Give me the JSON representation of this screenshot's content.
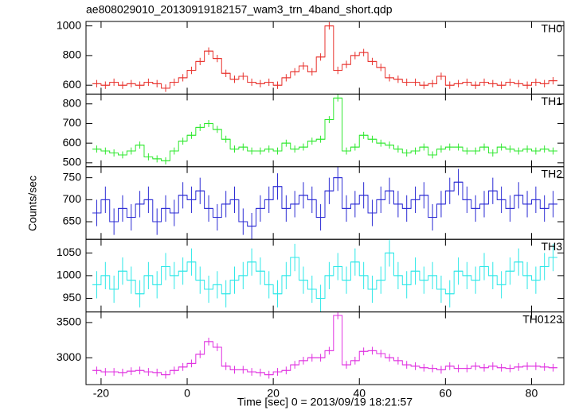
{
  "chart_data": {
    "type": "step",
    "title": "ae808029010_20130919182157_wam3_trn_4band_short.qdp",
    "x_label": "Time [sec] 0 = 2013/09/19 18:21:57",
    "y_label": "Counts/sec",
    "xlim": [
      -23.5,
      87.5
    ],
    "xticks": [
      -20,
      0,
      20,
      40,
      60,
      80
    ],
    "x": [
      -21,
      -19,
      -17,
      -15,
      -13,
      -11,
      -9,
      -7,
      -5,
      -3,
      -1,
      1,
      3,
      5,
      7,
      9,
      11,
      13,
      15,
      17,
      19,
      21,
      23,
      25,
      27,
      29,
      31,
      33,
      35,
      37,
      39,
      41,
      43,
      45,
      47,
      49,
      51,
      53,
      55,
      57,
      59,
      61,
      63,
      65,
      67,
      69,
      71,
      73,
      75,
      77,
      79,
      81,
      83,
      85
    ],
    "panels": [
      {
        "name": "TH0",
        "color": "#e8322d",
        "error": 25,
        "ylim": [
          540,
          1030
        ],
        "yticks": [
          600,
          800,
          1000
        ],
        "values": [
          610,
          600,
          620,
          600,
          610,
          600,
          620,
          610,
          580,
          620,
          650,
          700,
          760,
          830,
          780,
          680,
          640,
          660,
          620,
          610,
          620,
          600,
          650,
          690,
          730,
          690,
          790,
          1000,
          700,
          740,
          800,
          820,
          760,
          720,
          650,
          640,
          620,
          620,
          600,
          610,
          660,
          600,
          610,
          620,
          600,
          620,
          610,
          600,
          620,
          610,
          600,
          620,
          610,
          630
        ]
      },
      {
        "name": "TH1",
        "color": "#2ee82e",
        "error": 18,
        "ylim": [
          480,
          850
        ],
        "yticks": [
          500,
          600,
          700,
          800
        ],
        "values": [
          570,
          560,
          550,
          540,
          560,
          590,
          530,
          520,
          510,
          560,
          610,
          640,
          680,
          700,
          670,
          620,
          570,
          580,
          560,
          560,
          570,
          560,
          600,
          570,
          580,
          610,
          620,
          720,
          830,
          560,
          580,
          640,
          620,
          600,
          590,
          570,
          550,
          560,
          580,
          540,
          570,
          580,
          580,
          560,
          560,
          580,
          550,
          580,
          570,
          560,
          570,
          560,
          570,
          560
        ]
      },
      {
        "name": "TH2",
        "color": "#2b2bd4",
        "error": 30,
        "ylim": [
          610,
          775
        ],
        "yticks": [
          650,
          700,
          750
        ],
        "values": [
          670,
          700,
          650,
          680,
          660,
          690,
          700,
          650,
          680,
          670,
          710,
          700,
          720,
          680,
          660,
          690,
          700,
          650,
          640,
          680,
          700,
          730,
          680,
          690,
          710,
          700,
          660,
          720,
          750,
          680,
          690,
          710,
          670,
          700,
          720,
          690,
          680,
          700,
          710,
          660,
          690,
          720,
          740,
          700,
          680,
          690,
          720,
          700,
          680,
          710,
          690,
          700,
          680,
          690
        ]
      },
      {
        "name": "TH3",
        "color": "#2ee8e8",
        "error": 30,
        "ylim": [
          920,
          1080
        ],
        "yticks": [
          950,
          1000,
          1050
        ],
        "values": [
          980,
          1000,
          970,
          1010,
          990,
          960,
          1000,
          980,
          1020,
          1000,
          1010,
          1030,
          990,
          970,
          980,
          960,
          990,
          1000,
          1030,
          1010,
          980,
          960,
          1000,
          1040,
          990,
          970,
          950,
          1000,
          1020,
          990,
          1030,
          1000,
          970,
          990,
          1050,
          1000,
          980,
          1010,
          990,
          1000,
          970,
          960,
          1010,
          1000,
          990,
          1020,
          1000,
          980,
          1010,
          1030,
          1000,
          990,
          1020,
          1040
        ]
      },
      {
        "name": "TH0123",
        "color": "#e030e0",
        "error": 55,
        "ylim": [
          2620,
          3650
        ],
        "yticks": [
          3000,
          3500
        ],
        "values": [
          2820,
          2800,
          2800,
          2790,
          2810,
          2820,
          2800,
          2790,
          2760,
          2820,
          2870,
          2920,
          3050,
          3230,
          3150,
          2880,
          2830,
          2830,
          2800,
          2790,
          2760,
          2800,
          2820,
          2900,
          2960,
          3000,
          3000,
          3100,
          3600,
          2900,
          2960,
          3090,
          3100,
          3060,
          3000,
          2960,
          2900,
          2880,
          2860,
          2850,
          2830,
          2880,
          2850,
          2850,
          2880,
          2860,
          2880,
          2860,
          2850,
          2870,
          2880,
          2880,
          2870,
          2860
        ]
      }
    ]
  }
}
